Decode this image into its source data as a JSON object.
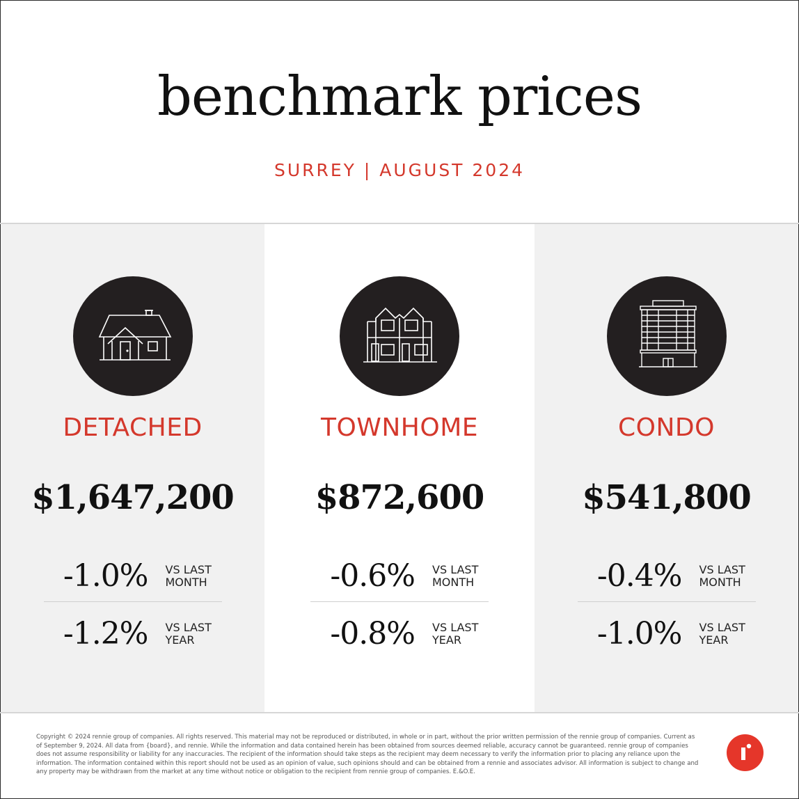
{
  "header": {
    "title": "benchmark prices",
    "subtitle": "SURREY | AUGUST 2024"
  },
  "colors": {
    "accent": "#d4382c",
    "icon_bg": "#231f20",
    "panel_bg": "#f1f1f1",
    "logo_bg": "#e5362a"
  },
  "columns": [
    {
      "icon": "house-icon",
      "type": "DETACHED",
      "price": "$1,647,200",
      "month_change": "-1.0%",
      "month_caption_1": "VS LAST",
      "month_caption_2": "MONTH",
      "year_change": "-1.2%",
      "year_caption_1": "VS LAST",
      "year_caption_2": "YEAR"
    },
    {
      "icon": "townhome-icon",
      "type": "TOWNHOME",
      "price": "$872,600",
      "month_change": "-0.6%",
      "month_caption_1": "VS LAST",
      "month_caption_2": "MONTH",
      "year_change": "-0.8%",
      "year_caption_1": "VS LAST",
      "year_caption_2": "YEAR"
    },
    {
      "icon": "condo-building-icon",
      "type": "CONDO",
      "price": "$541,800",
      "month_change": "-0.4%",
      "month_caption_1": "VS LAST",
      "month_caption_2": "MONTH",
      "year_change": "-1.0%",
      "year_caption_1": "VS LAST",
      "year_caption_2": "YEAR"
    }
  ],
  "footer": {
    "disclaimer": "Copyright © 2024 rennie group of companies. All rights reserved. This material may not be reproduced or distributed, in whole or in part, without the prior written permission of the rennie group of companies. Current as of September 9, 2024. All data from {board}, and rennie. While the information and data contained herein has been obtained from sources deemed reliable, accuracy cannot be guaranteed. rennie group of companies does not assume responsibility or liability for any inaccuracies. The recipient of the information should take steps as the recipient may deem necessary to verify the information prior to placing any reliance upon the information. The information contained within this report should not be used as an opinion of value, such opinions should and can be obtained from a rennie and associates advisor. All information is subject to change and any property may be withdrawn from the market at any time without notice or obligation to the recipient from rennie group of companies. E.&O.E.",
    "logo": "rennie-logo-icon"
  }
}
